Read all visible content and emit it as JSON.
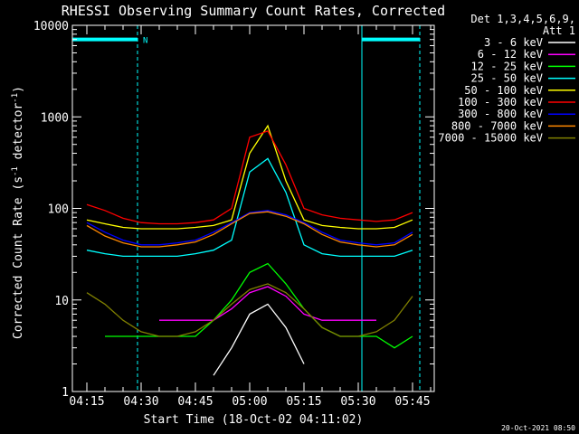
{
  "chart_data": {
    "type": "line",
    "title": "RHESSI Observing Summary Count Rates, Corrected",
    "xlabel": "Start Time (18-Oct-02 04:11:02)",
    "ylabel": "Corrected Count Rate (s⁻¹ detector⁻¹)",
    "ylabel_main": "Corrected Count Rate (s",
    "ylabel_sup1": "-1",
    "ylabel_mid": " detector",
    "ylabel_sup2": "-1",
    "ylabel_end": ")",
    "yscale": "log",
    "ylim": [
      1,
      10000
    ],
    "xlim": [
      "04:11",
      "05:51"
    ],
    "x_ticks": [
      "04:15",
      "04:30",
      "04:45",
      "05:00",
      "05:15",
      "05:30",
      "05:45"
    ],
    "y_ticks": [
      "1",
      "10",
      "100",
      "1000",
      "10000"
    ],
    "legend_header": [
      "Det 1,3,4,5,6,9,",
      "Att 1"
    ],
    "legend_placement": "top-right, outside plot",
    "timestamp": "20-Oct-2021 08:50",
    "markers": {
      "night_label": "N",
      "vertical_lines": [
        "04:11",
        "04:29",
        "05:31",
        "05:47"
      ],
      "night_bars": [
        [
          "04:11",
          "04:29"
        ],
        [
          "05:31",
          "05:47"
        ]
      ],
      "night_level": 7000,
      "color": "#00ffff"
    },
    "x": [
      "04:15",
      "04:20",
      "04:25",
      "04:30",
      "04:35",
      "04:40",
      "04:45",
      "04:50",
      "04:55",
      "05:00",
      "05:05",
      "05:10",
      "05:15",
      "05:20",
      "05:25",
      "05:30",
      "05:35",
      "05:40",
      "05:45"
    ],
    "series": [
      {
        "name": "3 - 6 keV",
        "color": "#ffffff",
        "values": [
          null,
          null,
          null,
          null,
          null,
          null,
          null,
          1.5,
          3,
          7,
          9,
          5,
          2,
          null,
          null,
          null,
          null,
          null,
          null
        ]
      },
      {
        "name": "6 - 12 keV",
        "color": "#ff00ff",
        "values": [
          null,
          null,
          null,
          null,
          6,
          6,
          6,
          6,
          8,
          12,
          14,
          11,
          7,
          6,
          6,
          6,
          6,
          null,
          null
        ]
      },
      {
        "name": "12 - 25 keV",
        "color": "#00ff00",
        "values": [
          null,
          4,
          4,
          4,
          4,
          4,
          4,
          6,
          10,
          20,
          25,
          15,
          8,
          5,
          4,
          4,
          4,
          3,
          4
        ]
      },
      {
        "name": "25 - 50 keV",
        "color": "#00ffff",
        "values": [
          35,
          32,
          30,
          30,
          30,
          30,
          32,
          35,
          45,
          250,
          350,
          150,
          40,
          32,
          30,
          30,
          30,
          30,
          35
        ]
      },
      {
        "name": "50 - 100 keV",
        "color": "#ffff00",
        "values": [
          75,
          68,
          62,
          60,
          60,
          60,
          62,
          65,
          75,
          400,
          800,
          200,
          75,
          65,
          62,
          60,
          60,
          62,
          75
        ]
      },
      {
        "name": "100 - 300 keV",
        "color": "#ff0000",
        "values": [
          110,
          95,
          78,
          70,
          68,
          68,
          70,
          75,
          100,
          600,
          700,
          300,
          100,
          85,
          78,
          75,
          72,
          75,
          90
        ]
      },
      {
        "name": "300 - 800 keV",
        "color": "#0000ff",
        "values": [
          70,
          55,
          45,
          40,
          40,
          42,
          45,
          55,
          70,
          90,
          95,
          85,
          70,
          55,
          45,
          42,
          40,
          42,
          55
        ]
      },
      {
        "name": "800 - 7000 keV",
        "color": "#ff8800",
        "values": [
          65,
          50,
          42,
          38,
          38,
          40,
          43,
          52,
          68,
          88,
          92,
          82,
          68,
          52,
          43,
          40,
          38,
          40,
          52
        ]
      },
      {
        "name": "7000 - 15000 keV",
        "color": "#808000",
        "values": [
          12,
          9,
          6,
          4.5,
          4,
          4,
          4.5,
          6,
          9,
          13,
          15,
          12,
          8,
          5,
          4,
          4,
          4.5,
          6,
          11
        ]
      }
    ]
  }
}
